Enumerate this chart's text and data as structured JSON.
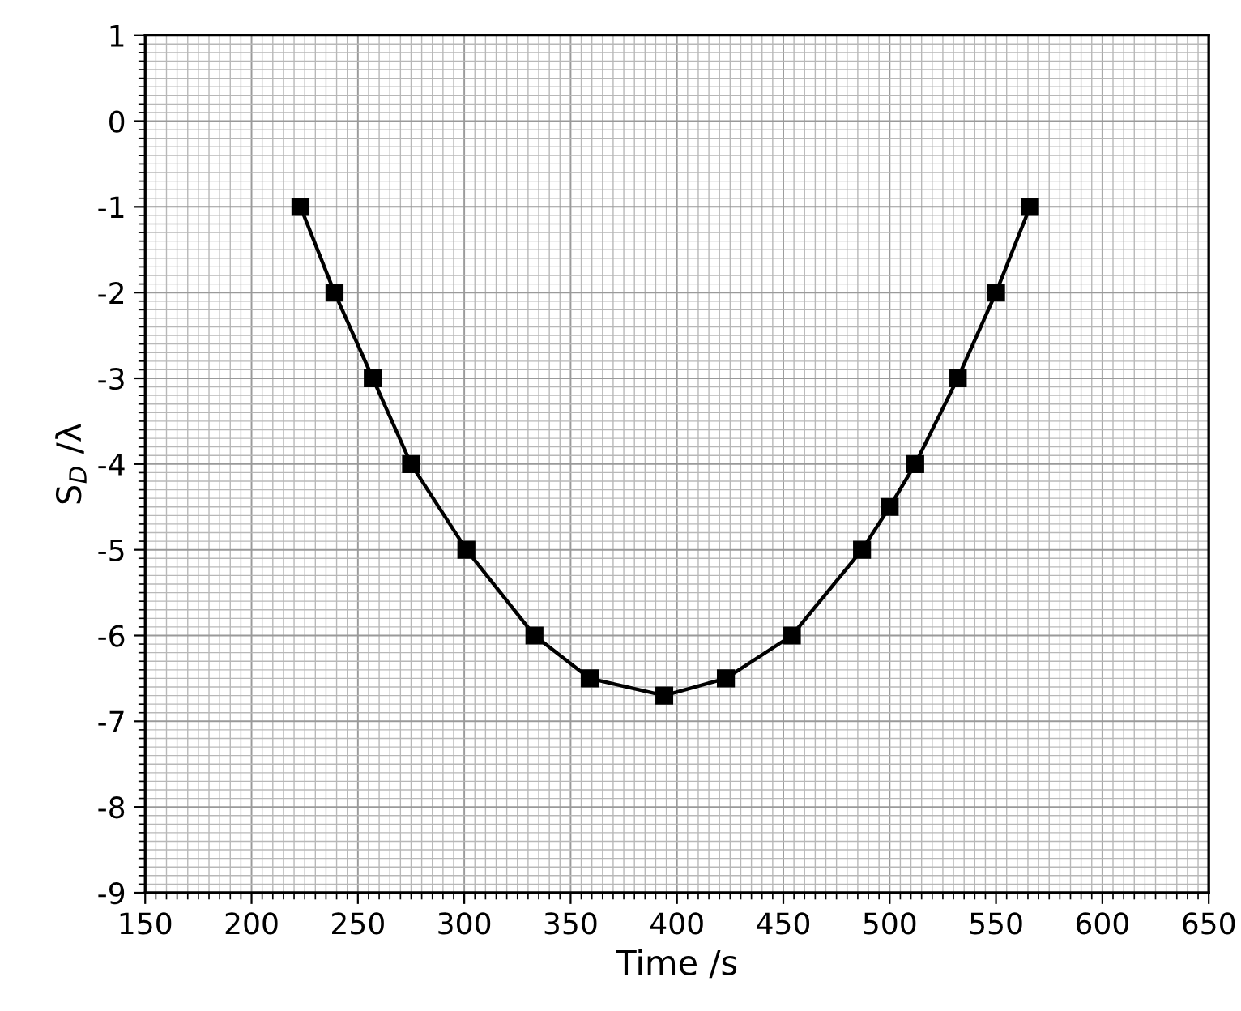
{
  "chart_data": {
    "type": "line",
    "xlabel": "Time /s",
    "ylabel": "S$_{D}$ /λ",
    "x": [
      223,
      239,
      257,
      275,
      301,
      333,
      359,
      394,
      423,
      454,
      487,
      500,
      512,
      532,
      550,
      566
    ],
    "series": [
      {
        "color": "#000000",
        "values": [
          -1,
          -2,
          -3,
          -4,
          -5,
          -6,
          -6.5,
          -6.7,
          -6.5,
          -6,
          -5,
          -4.5,
          -4,
          -3,
          -2,
          -1
        ]
      }
    ],
    "xlim": [
      150,
      650
    ],
    "ylim": [
      -9,
      1
    ],
    "xticks": [
      150,
      200,
      250,
      300,
      350,
      400,
      450,
      500,
      550,
      600,
      650
    ],
    "yticks": [
      -9,
      -8,
      -7,
      -6,
      -5,
      -4,
      -3,
      -2,
      -1,
      0,
      1
    ],
    "grid": true,
    "marker": "square",
    "line_style": "solid"
  }
}
